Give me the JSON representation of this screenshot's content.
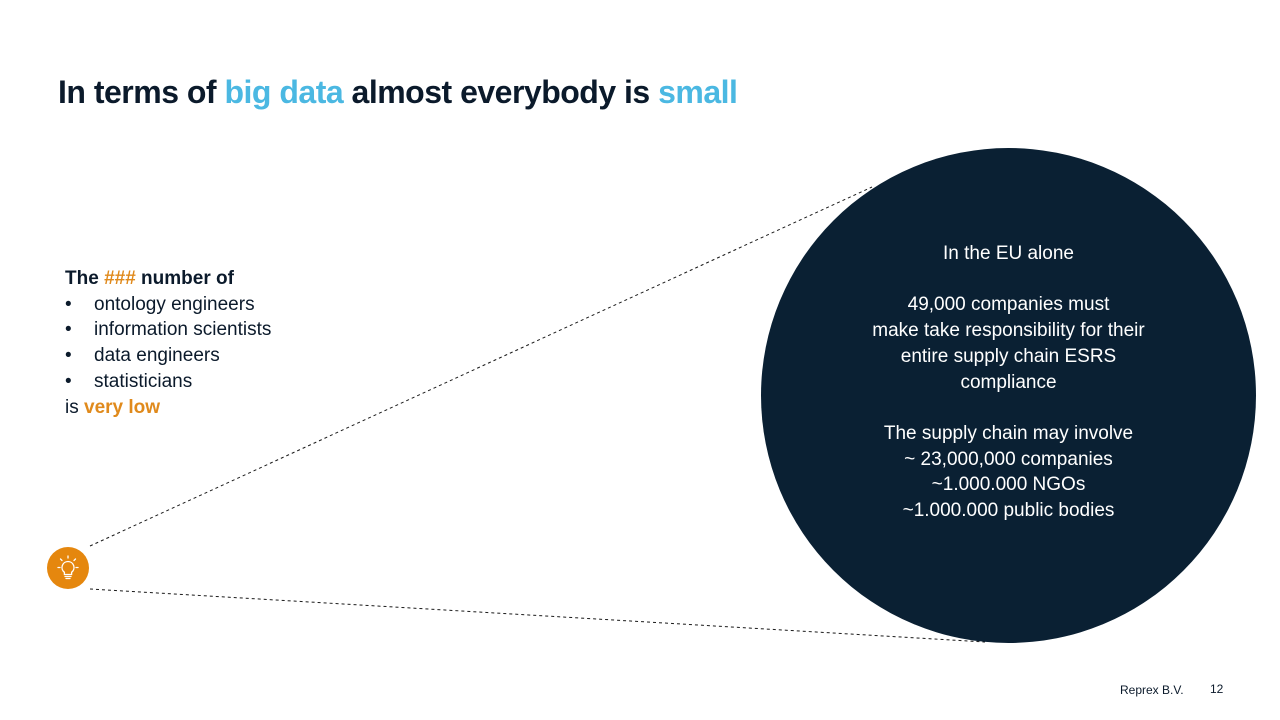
{
  "title": {
    "part1": "In terms of ",
    "accent1": "big data",
    "part2": " almost everybody is ",
    "accent2": "small"
  },
  "left": {
    "line1_prefix": "The ",
    "line1_highlight": "###",
    "line1_suffix": " number of",
    "bullet_glyph": "•",
    "items": [
      "ontology engineers",
      "information scientists",
      "data engineers",
      "statisticians"
    ],
    "closing_prefix": "is ",
    "closing_highlight": "very low"
  },
  "circle": {
    "heading": "In the EU alone",
    "para1": [
      "49,000 companies must",
      "make take responsibility for their",
      "entire supply chain ESRS",
      "compliance"
    ],
    "para2": [
      "The supply chain may involve",
      "~ 23,000,000 companies",
      "~1.000.000 NGOs",
      "~1.000.000 public bodies"
    ]
  },
  "icon": {
    "name": "lightbulb-icon"
  },
  "footer": {
    "company": "Reprex B.V.",
    "page": "12"
  },
  "colors": {
    "accent_blue": "#4bb8e2",
    "accent_orange": "#e08a1c",
    "navy": "#0a2033",
    "icon_orange": "#e5870e"
  }
}
